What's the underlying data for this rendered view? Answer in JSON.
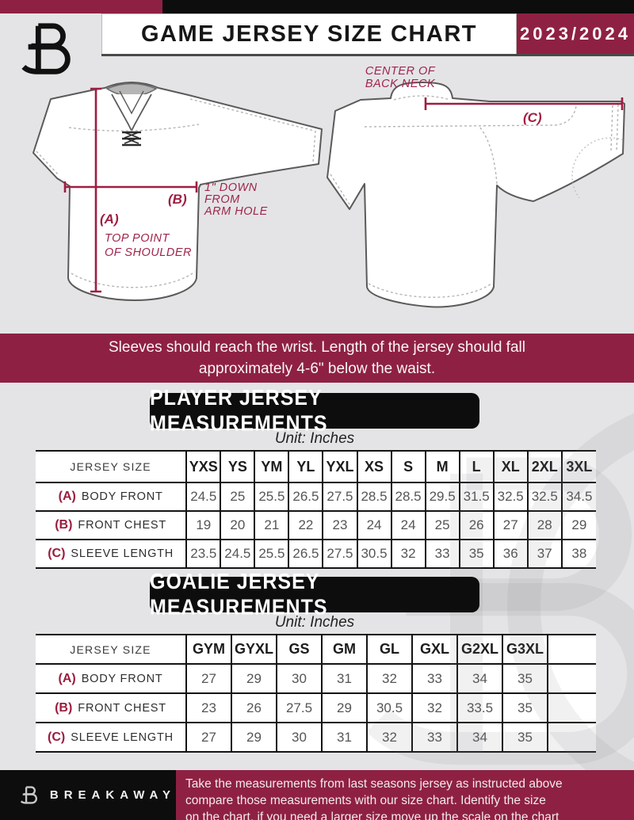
{
  "colors": {
    "maroon": "#8e2143",
    "black": "#0d0d0d",
    "page_bg": "#e4e4e6",
    "measure_line": "#a01d42"
  },
  "header": {
    "title": "GAME JERSEY SIZE CHART",
    "season": "2023/2024"
  },
  "diagram": {
    "front": {
      "a_key": "(A)",
      "a_note_lines": [
        "TOP POINT",
        "OF SHOULDER"
      ],
      "b_key": "(B)",
      "b_note_lines": [
        "1\" DOWN",
        "FROM",
        "ARM HOLE"
      ]
    },
    "back": {
      "c_key": "(C)",
      "c_note_lines": [
        "CENTER OF",
        "BACK NECK"
      ]
    }
  },
  "notice_lines": [
    "Sleeves should reach the wrist. Length of the jersey should fall",
    "approximately 4-6\" below the waist."
  ],
  "player_table": {
    "title": "PLAYER JERSEY MEASUREMENTS",
    "unit": "Unit: Inches",
    "corner": "JERSEY SIZE",
    "sizes": [
      "YXS",
      "YS",
      "YM",
      "YL",
      "YXL",
      "XS",
      "S",
      "M",
      "L",
      "XL",
      "2XL",
      "3XL"
    ],
    "trailing_empty": false,
    "rows": [
      {
        "key": "(A)",
        "label": "BODY FRONT",
        "values": [
          "24.5",
          "25",
          "25.5",
          "26.5",
          "27.5",
          "28.5",
          "28.5",
          "29.5",
          "31.5",
          "32.5",
          "32.5",
          "34.5"
        ]
      },
      {
        "key": "(B)",
        "label": "FRONT CHEST",
        "values": [
          "19",
          "20",
          "21",
          "22",
          "23",
          "24",
          "24",
          "25",
          "26",
          "27",
          "28",
          "29"
        ]
      },
      {
        "key": "(C)",
        "label": "SLEEVE LENGTH",
        "values": [
          "23.5",
          "24.5",
          "25.5",
          "26.5",
          "27.5",
          "30.5",
          "32",
          "33",
          "35",
          "36",
          "37",
          "38"
        ]
      }
    ]
  },
  "goalie_table": {
    "title": "GOALIE JERSEY MEASUREMENTS",
    "unit": "Unit: Inches",
    "corner": "JERSEY SIZE",
    "sizes": [
      "GYM",
      "GYXL",
      "GS",
      "GM",
      "GL",
      "GXL",
      "G2XL",
      "G3XL"
    ],
    "trailing_empty": true,
    "rows": [
      {
        "key": "(A)",
        "label": "BODY FRONT",
        "values": [
          "27",
          "29",
          "30",
          "31",
          "32",
          "33",
          "34",
          "35"
        ]
      },
      {
        "key": "(B)",
        "label": "FRONT CHEST",
        "values": [
          "23",
          "26",
          "27.5",
          "29",
          "30.5",
          "32",
          "33.5",
          "35"
        ]
      },
      {
        "key": "(C)",
        "label": "SLEEVE LENGTH",
        "values": [
          "27",
          "29",
          "30",
          "31",
          "32",
          "33",
          "34",
          "35"
        ]
      }
    ]
  },
  "footer": {
    "brand": "BREAKAWAY",
    "lines": [
      "Take the measurements from last seasons jersey as instructed above",
      "compare those measurements  with our size chart. Identify the size",
      "on the chart, if you need a larger size move up the scale on the chart"
    ]
  }
}
